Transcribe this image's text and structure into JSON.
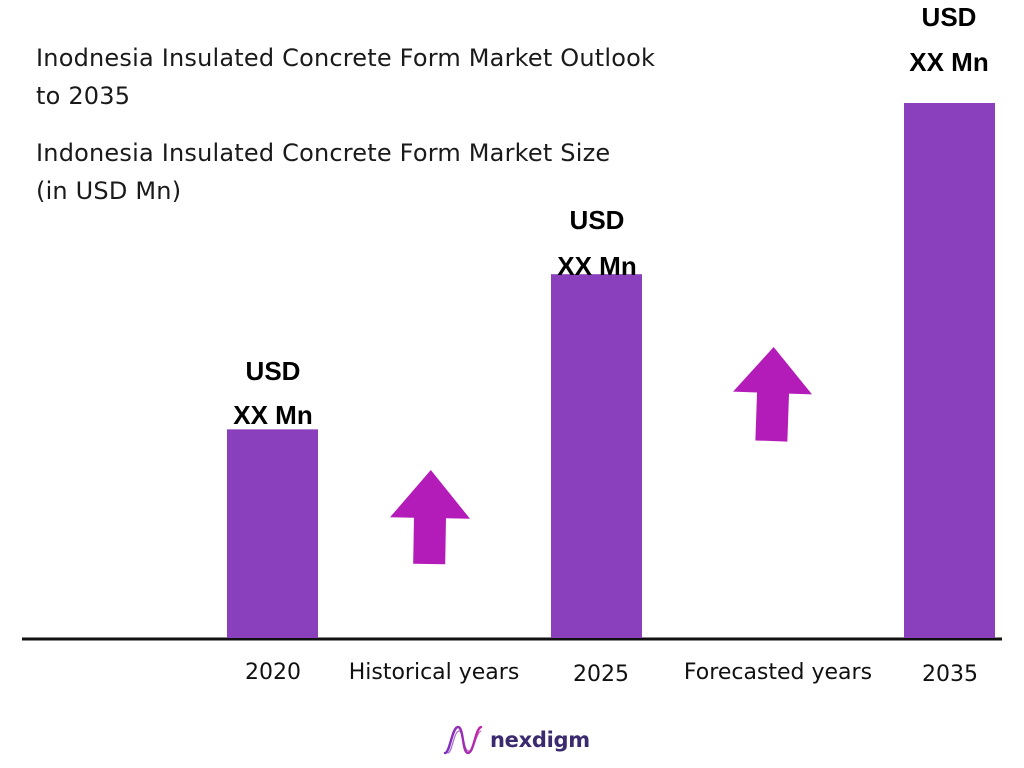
{
  "title": {
    "line1": "Inodnesia Insulated Concrete Form Market Outlook",
    "line2": "to 2035",
    "line3": "Indonesia Insulated Concrete Form Market Size",
    "line4": "(in USD Mn)"
  },
  "chart_data": {
    "type": "bar",
    "categories": [
      "2020",
      "2025",
      "2035"
    ],
    "values": [
      39,
      68,
      100
    ],
    "ylim": [
      0,
      100
    ],
    "data_labels": [
      {
        "line1": "USD",
        "line2": "XX Mn"
      },
      {
        "line1": "USD",
        "line2": "XX Mn"
      },
      {
        "line1": "USD",
        "line2": "XX Mn"
      }
    ],
    "period_labels": [
      "Historical years",
      "Forecasted years"
    ],
    "bar_color": "#8a3fbd",
    "arrow_color": "#b31cb8",
    "axis_color": "#111111"
  },
  "logo": {
    "text": "nexdigm",
    "icon": "nexdigm-wave-icon"
  }
}
